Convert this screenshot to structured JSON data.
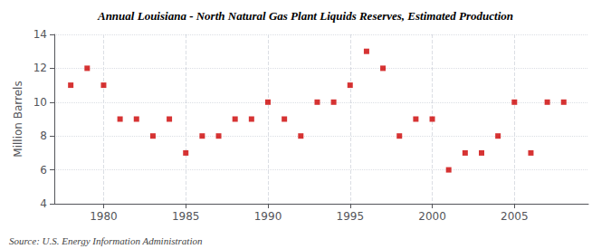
{
  "chart_data": {
    "type": "scatter",
    "title": "Annual Louisiana - North Natural Gas Plant Liquids Reserves, Estimated Production",
    "y_label": "Million Barrels",
    "annotations": [
      "Source: U.S. Energy Information Administration"
    ],
    "x": [
      1978,
      1979,
      1980,
      1981,
      1982,
      1983,
      1984,
      1985,
      1986,
      1987,
      1988,
      1989,
      1990,
      1991,
      1992,
      1993,
      1994,
      1995,
      1996,
      1997,
      1998,
      1999,
      2000,
      2001,
      2002,
      2003,
      2004,
      2005,
      2006,
      2007,
      2008
    ],
    "values": [
      11,
      12,
      11,
      9,
      9,
      8,
      9,
      7,
      8,
      8,
      9,
      9,
      10,
      9,
      8,
      10,
      10,
      11,
      13,
      12,
      8,
      9,
      9,
      6,
      7,
      7,
      8,
      10,
      7,
      10,
      10
    ],
    "color": "#cc0000",
    "marker": "square",
    "xlim": [
      1977,
      2009.5
    ],
    "xticks": [
      1980,
      1985,
      1990,
      1995,
      2000,
      2005
    ],
    "ylim": [
      4,
      14
    ],
    "yticks": [
      4,
      6,
      8,
      10,
      12,
      14
    ],
    "grid": true
  }
}
